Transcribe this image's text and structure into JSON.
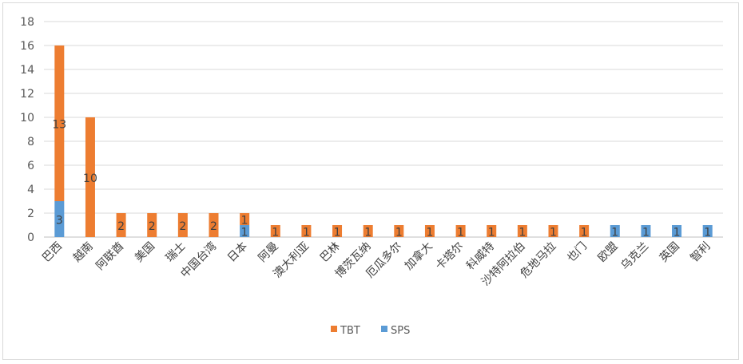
{
  "chart_data": {
    "type": "bar",
    "stacked": true,
    "title": "",
    "xlabel": "",
    "ylabel": "",
    "ylim": [
      0,
      18
    ],
    "ytick_step": 2,
    "grid": true,
    "legend": "bottom",
    "categories": [
      "巴西",
      "越南",
      "阿联酋",
      "美国",
      "瑞士",
      "中国台湾",
      "日本",
      "阿曼",
      "澳大利亚",
      "巴林",
      "博茨瓦纳",
      "厄瓜多尔",
      "加拿大",
      "卡塔尔",
      "科威特",
      "沙特阿拉伯",
      "危地马拉",
      "也门",
      "欧盟",
      "乌克兰",
      "英国",
      "智利"
    ],
    "series": [
      {
        "name": "SPS",
        "color": "#5b9bd5",
        "values": [
          3,
          0,
          0,
          0,
          0,
          0,
          1,
          0,
          0,
          0,
          0,
          0,
          0,
          0,
          0,
          0,
          0,
          0,
          1,
          1,
          1,
          1
        ]
      },
      {
        "name": "TBT",
        "color": "#ed7d31",
        "values": [
          13,
          10,
          2,
          2,
          2,
          2,
          1,
          1,
          1,
          1,
          1,
          1,
          1,
          1,
          1,
          1,
          1,
          1,
          0,
          0,
          0,
          0
        ]
      }
    ],
    "legend_order": [
      "TBT",
      "SPS"
    ]
  }
}
